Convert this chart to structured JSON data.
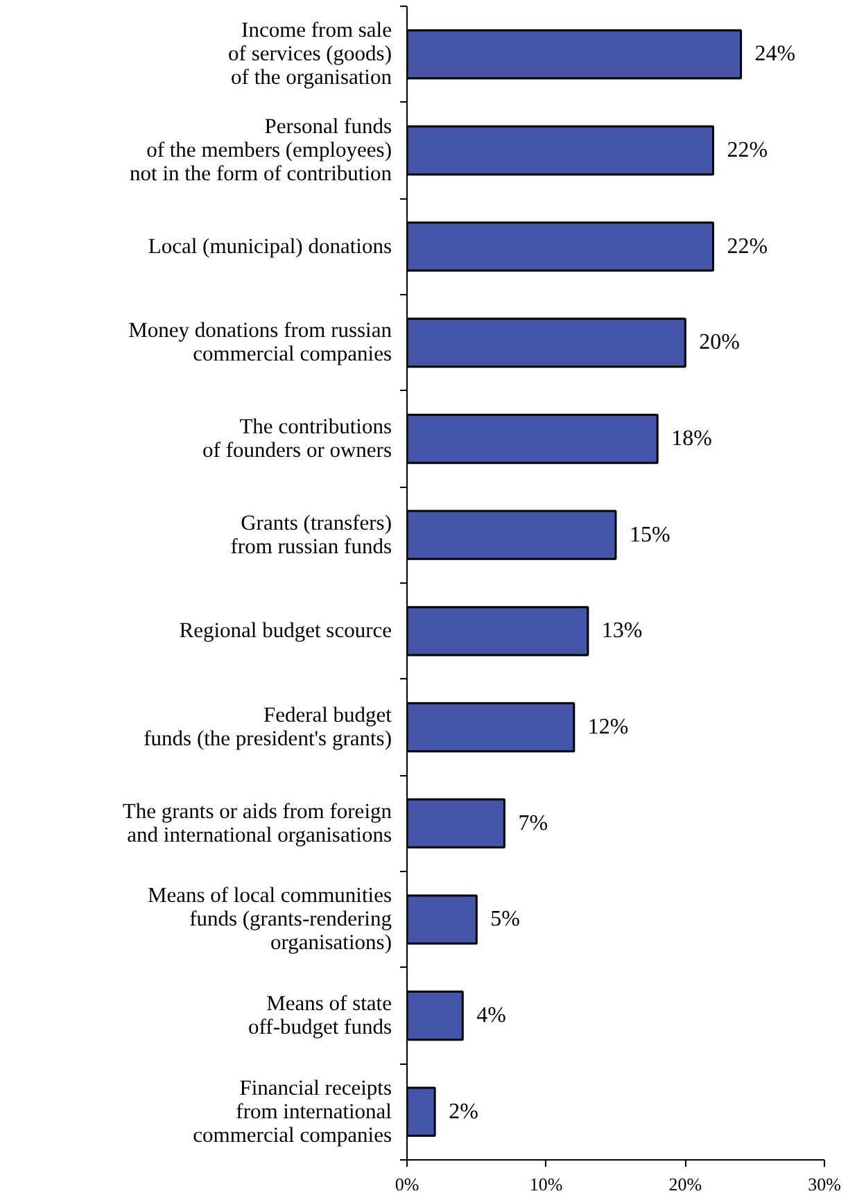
{
  "chart_data": {
    "type": "bar",
    "orientation": "horizontal",
    "categories": [
      "Income from sale\nof services (goods)\nof the organisation",
      "Personal funds\nof the members (employees)\nnot in the form of contribution",
      "Local (municipal) donations",
      "Money donations from russian\ncommercial companies",
      "The contributions\nof founders or owners",
      "Grants (transfers)\nfrom russian funds",
      "Regional budget scource",
      "Federal budget\nfunds (the president's grants)",
      "The grants or aids from foreign\nand international organisations",
      "Means of local communities\nfunds (grants-rendering\norganisations)",
      "Means of state\noff-budget funds",
      "Financial receipts\nfrom international\ncommercial companies"
    ],
    "values": [
      24,
      22,
      22,
      20,
      18,
      15,
      13,
      12,
      7,
      5,
      4,
      2
    ],
    "value_labels": [
      "24%",
      "22%",
      "22%",
      "20%",
      "18%",
      "15%",
      "13%",
      "12%",
      "7%",
      "5%",
      "4%",
      "2%"
    ],
    "color": "#4455aa",
    "xlim": [
      0,
      30
    ],
    "xticks": [
      {
        "value": 0,
        "label": "0%"
      },
      {
        "value": 10,
        "label": "10%"
      },
      {
        "value": 20,
        "label": "20%"
      },
      {
        "value": 30,
        "label": "30%"
      }
    ]
  }
}
